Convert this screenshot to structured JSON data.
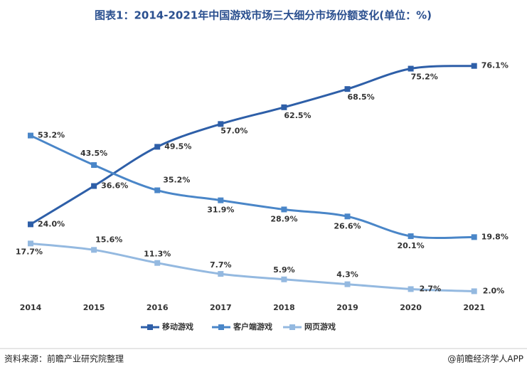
{
  "chart_data": {
    "type": "line",
    "title": "图表1：2014-2021年中国游戏市场三大细分市场份额变化(单位：%)",
    "categories": [
      "2014",
      "2015",
      "2016",
      "2017",
      "2018",
      "2019",
      "2020",
      "2021"
    ],
    "series": [
      {
        "name": "移动游戏",
        "color": "#2e5fa8",
        "values": [
          24.0,
          36.6,
          49.5,
          57.0,
          62.5,
          68.5,
          75.2,
          76.1
        ],
        "value_labels": [
          "24.0%",
          "36.6%",
          "49.5%",
          "57.0%",
          "62.5%",
          "68.5%",
          "75.2%",
          "76.1%"
        ]
      },
      {
        "name": "客户端游戏",
        "color": "#4a86c8",
        "values": [
          53.2,
          43.5,
          35.2,
          31.9,
          28.9,
          26.6,
          20.1,
          19.8
        ],
        "value_labels": [
          "53.2%",
          "43.5%",
          "35.2%",
          "31.9%",
          "28.9%",
          "26.6%",
          "20.1%",
          "19.8%"
        ]
      },
      {
        "name": "网页游戏",
        "color": "#94b9e0",
        "values": [
          17.7,
          15.6,
          11.3,
          7.7,
          5.9,
          4.3,
          2.7,
          2.0
        ],
        "value_labels": [
          "17.7%",
          "15.6%",
          "11.3%",
          "7.7%",
          "5.9%",
          "4.3%",
          "2.7%",
          "2.0%"
        ]
      }
    ],
    "ylim": [
      0,
      80
    ],
    "legend": "bottom",
    "source": "资料来源：前瞻产业研究院整理",
    "credit": "@前瞻经济学人APP"
  }
}
